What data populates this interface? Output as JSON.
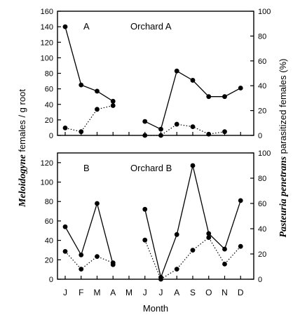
{
  "chart_data": {
    "type": "line",
    "xlabel": "Month",
    "months": [
      "J",
      "F",
      "M",
      "A",
      "M",
      "J",
      "J",
      "A",
      "S",
      "O",
      "N",
      "D"
    ],
    "ylabel_left": {
      "italic": "Meloidogyne",
      "rest": " females / g root"
    },
    "ylabel_right": {
      "italic": "Pasteuria penetrans",
      "rest": " parasitized females (%)"
    },
    "panels": [
      {
        "letter": "A",
        "name": "Orchard A",
        "ylim_left": [
          0,
          160
        ],
        "yticks_left": [
          0,
          20,
          40,
          60,
          80,
          100,
          120,
          140,
          160
        ],
        "ylim_right": [
          0,
          100
        ],
        "yticks_right": [
          0,
          20,
          40,
          60,
          80,
          100
        ],
        "series": [
          {
            "axis": "left",
            "style": "solid",
            "segments": [
              [
                [
                  1,
                  140
                ],
                [
                  2,
                  65
                ],
                [
                  3,
                  57
                ],
                [
                  4,
                  44
                ]
              ],
              [
                [
                  6,
                  18
                ],
                [
                  7,
                  8
                ],
                [
                  8,
                  83
                ],
                [
                  9,
                  71
                ],
                [
                  10,
                  50
                ],
                [
                  11,
                  50
                ],
                [
                  12,
                  61
                ]
              ]
            ]
          },
          {
            "axis": "right",
            "style": "dotted",
            "segments": [
              [
                [
                  1,
                  6
                ],
                [
                  2,
                  3
                ],
                [
                  3,
                  21
                ],
                [
                  4,
                  24
                ]
              ],
              [
                [
                  6,
                  0
                ],
                [
                  7,
                  0
                ],
                [
                  8,
                  9
                ],
                [
                  9,
                  7
                ],
                [
                  10,
                  1
                ],
                [
                  11,
                  3
                ]
              ]
            ]
          }
        ]
      },
      {
        "letter": "B",
        "name": "Orchard B",
        "ylim_left": [
          0,
          130
        ],
        "yticks_left": [
          0,
          20,
          40,
          60,
          80,
          100,
          120
        ],
        "ylim_right": [
          0,
          100
        ],
        "yticks_right": [
          0,
          20,
          40,
          60,
          80,
          100
        ],
        "series": [
          {
            "axis": "left",
            "style": "solid",
            "segments": [
              [
                [
                  1,
                  54
                ],
                [
                  2,
                  25
                ],
                [
                  3,
                  78
                ],
                [
                  4,
                  15
                ]
              ],
              [
                [
                  6,
                  72
                ],
                [
                  7,
                  2
                ],
                [
                  8,
                  46
                ],
                [
                  9,
                  117
                ],
                [
                  10,
                  47
                ],
                [
                  11,
                  31
                ],
                [
                  12,
                  81
                ]
              ]
            ]
          },
          {
            "axis": "right",
            "style": "dotted",
            "segments": [
              [
                [
                  1,
                  22
                ],
                [
                  2,
                  8
                ],
                [
                  3,
                  18
                ],
                [
                  4,
                  13
                ]
              ],
              [
                [
                  6,
                  31
                ],
                [
                  7,
                  0
                ],
                [
                  8,
                  8
                ],
                [
                  9,
                  23
                ],
                [
                  10,
                  33
                ],
                [
                  11,
                  12
                ],
                [
                  12,
                  26
                ]
              ]
            ]
          }
        ]
      }
    ]
  }
}
